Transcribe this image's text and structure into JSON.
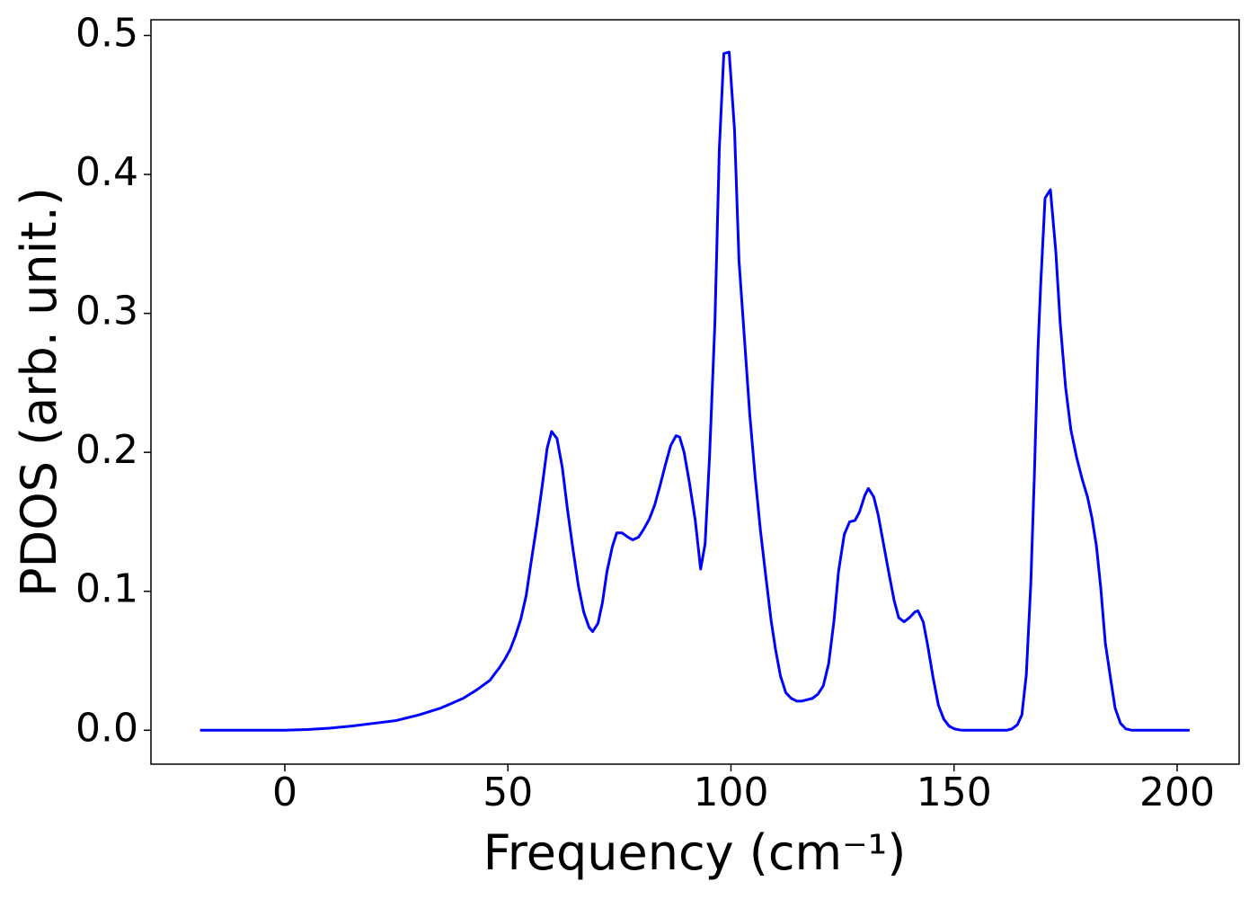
{
  "chart_data": {
    "type": "line",
    "xlabel": "Frequency (cm⁻¹)",
    "ylabel": "PDOS (arb. unit.)",
    "xlim": [
      -30,
      213.9
    ],
    "ylim": [
      -0.0244,
      0.5113
    ],
    "xticks": [
      0,
      50,
      100,
      150,
      200
    ],
    "yticks": [
      {
        "value": 0,
        "label": "0.0"
      },
      0.1,
      0.2,
      0.3,
      0.4,
      0.5
    ],
    "grid": false,
    "series": [
      {
        "name": "PDOS",
        "color": "#0000ff",
        "x": [
          -19,
          -10,
          0,
          5,
          10,
          15,
          20,
          25,
          30,
          35,
          40,
          43,
          46,
          46.9,
          48.1,
          49.3,
          50.5,
          51.7,
          52.9,
          54.1,
          55.3,
          56.5,
          57.7,
          58.8,
          59.8,
          61,
          62.2,
          63.4,
          64.6,
          65.8,
          67,
          68.2,
          69,
          70.2,
          71.2,
          72.2,
          73.4,
          74.4,
          75.6,
          76.9,
          78,
          79.3,
          80.5,
          81.7,
          82.9,
          84.1,
          85.3,
          86.5,
          87.7,
          88.5,
          89.5,
          90.7,
          92,
          93.2,
          94.2,
          95.2,
          96.4,
          97.4,
          98.4,
          99.6,
          100.8,
          101.8,
          103,
          104.2,
          105.4,
          106.6,
          107.8,
          109,
          110,
          111.1,
          112.3,
          113.5,
          114.7,
          115.9,
          117.1,
          118.3,
          119.5,
          120.7,
          121.9,
          123.1,
          124.1,
          125.4,
          126.6,
          127.8,
          128.8,
          130,
          130.8,
          132,
          133,
          134.2,
          135.4,
          136.6,
          137.6,
          138.8,
          140,
          141.2,
          141.9,
          143.1,
          144.1,
          145.3,
          146.5,
          147.7,
          148.9,
          150.1,
          151.7,
          161.8,
          163,
          164.2,
          165.2,
          166.2,
          167.2,
          168,
          168.8,
          169.4,
          170.4,
          171.6,
          172.8,
          173.8,
          175,
          176.2,
          177.5,
          178.7,
          179.9,
          180.9,
          181.9,
          182.9,
          183.9,
          185.1,
          186.1,
          187.3,
          188.5,
          189.9,
          202.8
        ],
        "values": [
          0,
          0,
          0,
          0.0005,
          0.0015,
          0.003,
          0.005,
          0.007,
          0.011,
          0.016,
          0.023,
          0.029,
          0.036,
          0.04,
          0.045,
          0.051,
          0.058,
          0.068,
          0.08,
          0.097,
          0.123,
          0.148,
          0.176,
          0.203,
          0.215,
          0.21,
          0.189,
          0.158,
          0.13,
          0.104,
          0.085,
          0.074,
          0.071,
          0.077,
          0.092,
          0.114,
          0.132,
          0.142,
          0.142,
          0.139,
          0.137,
          0.139,
          0.145,
          0.152,
          0.162,
          0.176,
          0.191,
          0.205,
          0.212,
          0.211,
          0.2,
          0.178,
          0.151,
          0.116,
          0.134,
          0.197,
          0.293,
          0.419,
          0.487,
          0.488,
          0.432,
          0.338,
          0.283,
          0.228,
          0.183,
          0.144,
          0.111,
          0.079,
          0.058,
          0.039,
          0.027,
          0.023,
          0.021,
          0.021,
          0.022,
          0.023,
          0.026,
          0.032,
          0.048,
          0.079,
          0.114,
          0.141,
          0.15,
          0.151,
          0.157,
          0.169,
          0.174,
          0.168,
          0.155,
          0.134,
          0.113,
          0.093,
          0.081,
          0.078,
          0.081,
          0.085,
          0.086,
          0.078,
          0.061,
          0.038,
          0.018,
          0.008,
          0.003,
          0.001,
          0,
          0,
          0.001,
          0.004,
          0.011,
          0.04,
          0.105,
          0.183,
          0.273,
          0.319,
          0.383,
          0.389,
          0.345,
          0.293,
          0.247,
          0.216,
          0.196,
          0.181,
          0.168,
          0.153,
          0.133,
          0.102,
          0.063,
          0.037,
          0.016,
          0.005,
          0.001,
          0,
          0
        ]
      }
    ]
  }
}
